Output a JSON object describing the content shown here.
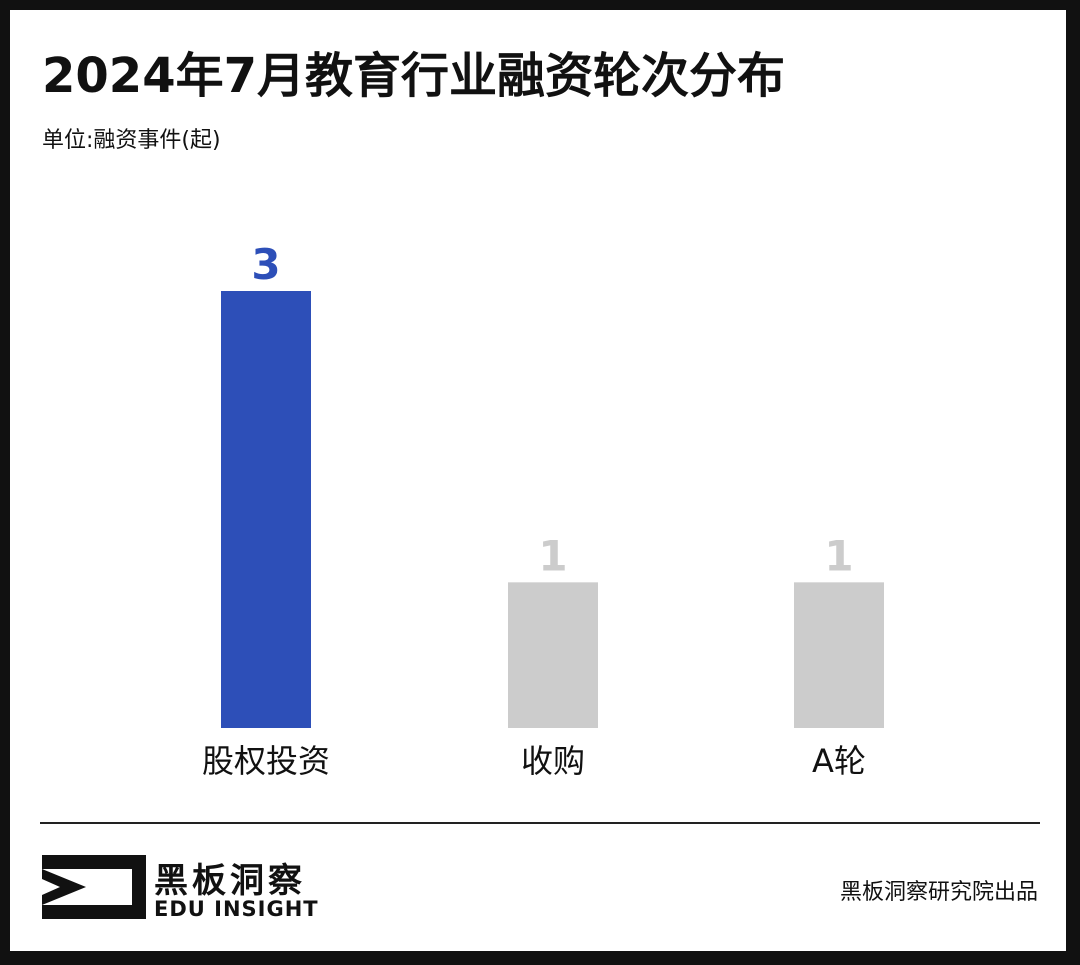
{
  "title": "2024年7月教育行业融资轮次分布",
  "unit_label": "单位:融资事件(起)",
  "colors": {
    "highlight": "#2d4fb8",
    "muted_bar": "#cccccc",
    "muted_label": "#cccccc"
  },
  "chart_data": {
    "type": "bar",
    "categories": [
      "股权投资",
      "收购",
      "A轮"
    ],
    "values": [
      3,
      1,
      1
    ],
    "highlight_index": 0,
    "title": "2024年7月教育行业融资轮次分布",
    "ylabel": "单位:融资事件(起)",
    "ylim": [
      0,
      3
    ],
    "grid": false,
    "legend": "none"
  },
  "footer": {
    "logo_cn": "黑板洞察",
    "logo_en": "EDU INSIGHT",
    "source": "黑板洞察研究院出品"
  }
}
